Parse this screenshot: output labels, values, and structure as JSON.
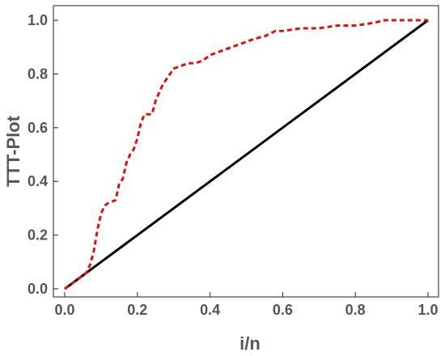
{
  "chart_data": {
    "type": "line",
    "xlabel": "i/n",
    "ylabel": "TTT-Plot",
    "xlim": [
      0,
      1
    ],
    "ylim": [
      0,
      1
    ],
    "xticks": [
      "0.0",
      "0.2",
      "0.4",
      "0.6",
      "0.8",
      "1.0"
    ],
    "yticks": [
      "0.0",
      "0.2",
      "0.4",
      "0.6",
      "0.8",
      "1.0"
    ],
    "grid": false,
    "series": [
      {
        "style": "solid",
        "color": "#000000",
        "x": [
          0,
          1
        ],
        "y": [
          0,
          1
        ]
      },
      {
        "style": "dashed",
        "color": "#dd1111",
        "x": [
          0.0,
          0.02,
          0.04,
          0.06,
          0.07,
          0.08,
          0.09,
          0.1,
          0.11,
          0.12,
          0.14,
          0.15,
          0.16,
          0.17,
          0.18,
          0.19,
          0.2,
          0.21,
          0.22,
          0.24,
          0.25,
          0.26,
          0.27,
          0.28,
          0.3,
          0.32,
          0.34,
          0.36,
          0.38,
          0.4,
          0.42,
          0.44,
          0.46,
          0.48,
          0.5,
          0.52,
          0.55,
          0.58,
          0.6,
          0.65,
          0.7,
          0.75,
          0.8,
          0.85,
          0.88,
          0.9,
          0.95,
          1.0
        ],
        "y": [
          0.0,
          0.02,
          0.04,
          0.06,
          0.09,
          0.14,
          0.22,
          0.28,
          0.31,
          0.32,
          0.33,
          0.39,
          0.41,
          0.47,
          0.5,
          0.52,
          0.56,
          0.62,
          0.65,
          0.65,
          0.7,
          0.73,
          0.76,
          0.78,
          0.82,
          0.83,
          0.84,
          0.84,
          0.85,
          0.87,
          0.88,
          0.89,
          0.9,
          0.91,
          0.92,
          0.93,
          0.94,
          0.96,
          0.96,
          0.97,
          0.97,
          0.98,
          0.98,
          0.99,
          1.0,
          1.0,
          1.0,
          1.0
        ]
      }
    ]
  }
}
